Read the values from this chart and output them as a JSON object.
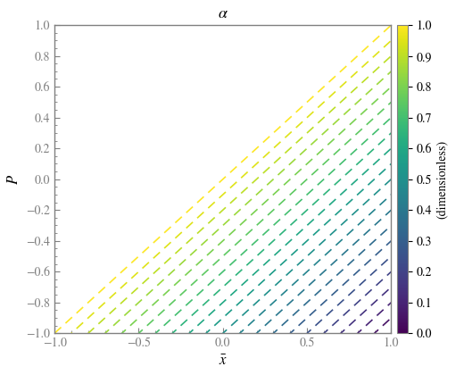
{
  "title": "$\\alpha$",
  "xlabel": "$\\bar{x}$",
  "ylabel": "$P$",
  "colorbar_label": "(dimensionless)",
  "xlim": [
    -1,
    1
  ],
  "ylim": [
    -1,
    1
  ],
  "alpha_values": [
    0.0,
    0.05,
    0.1,
    0.15,
    0.2,
    0.25,
    0.3,
    0.35,
    0.4,
    0.45,
    0.5,
    0.55,
    0.6,
    0.65,
    0.7,
    0.75,
    0.8,
    0.85,
    0.9,
    0.95,
    1.0
  ],
  "colormap": "viridis",
  "line_width": 1.2,
  "dash_on": 6,
  "dash_off": 4,
  "background_color": "#ffffff",
  "axes_edge_color": "#808080",
  "tick_color": "#808080",
  "title_fontsize": 13,
  "label_fontsize": 12,
  "tick_fontsize": 10,
  "cbar_tick_fontsize": 10
}
